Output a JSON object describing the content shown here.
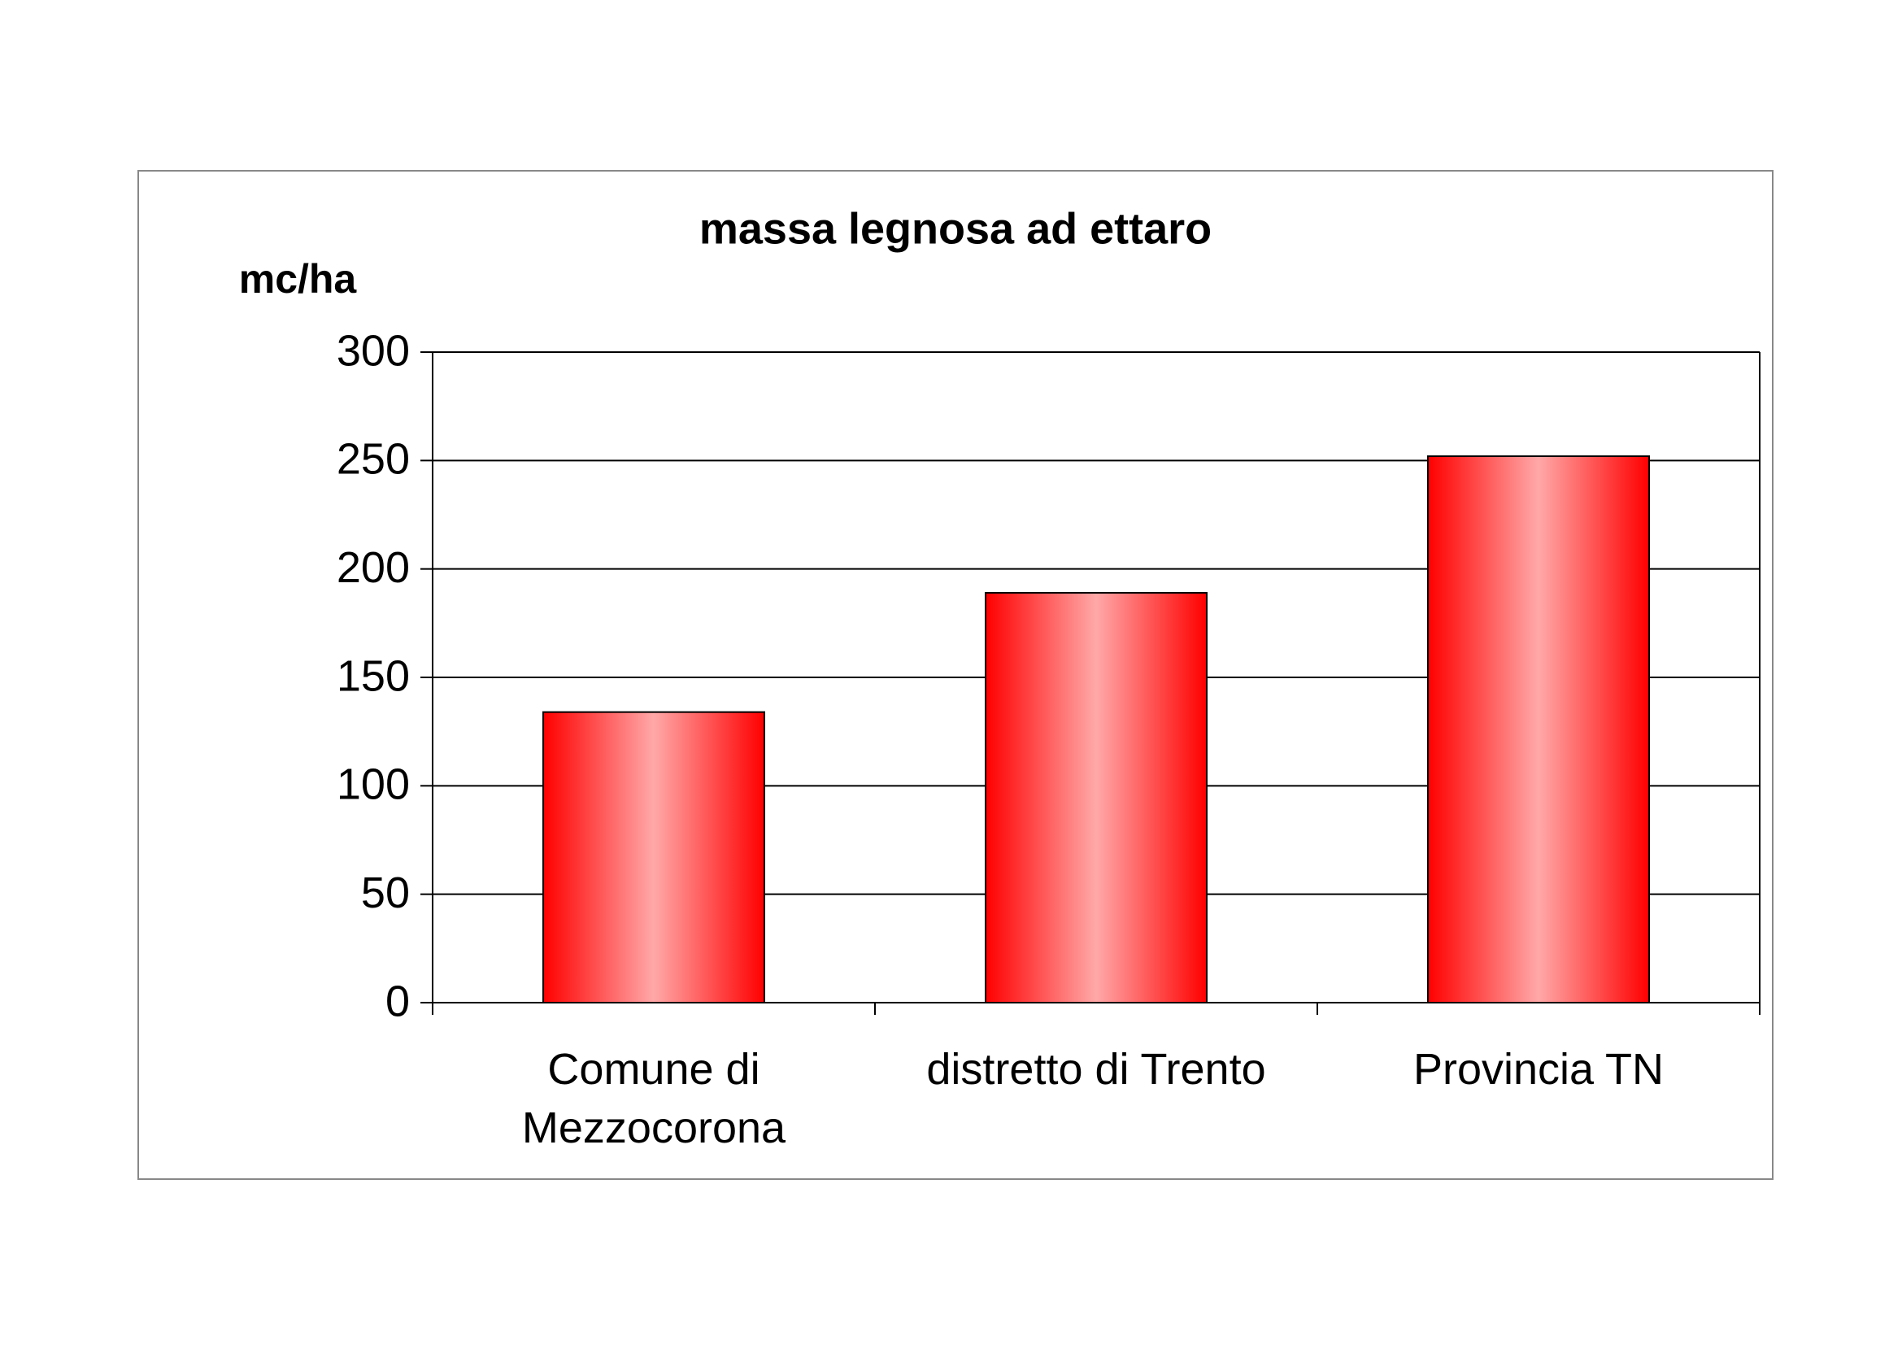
{
  "chart_data": {
    "type": "bar",
    "title": "massa legnosa ad ettaro",
    "y_label": "mc/ha",
    "categories": [
      "Comune di Mezzocorona",
      "distretto di Trento",
      "Provincia TN"
    ],
    "values": [
      134,
      189,
      252
    ],
    "color": "#ff0000",
    "ylim": [
      0,
      300
    ],
    "yticks": [
      0,
      50,
      100,
      150,
      200,
      250,
      300
    ],
    "grid": true
  }
}
